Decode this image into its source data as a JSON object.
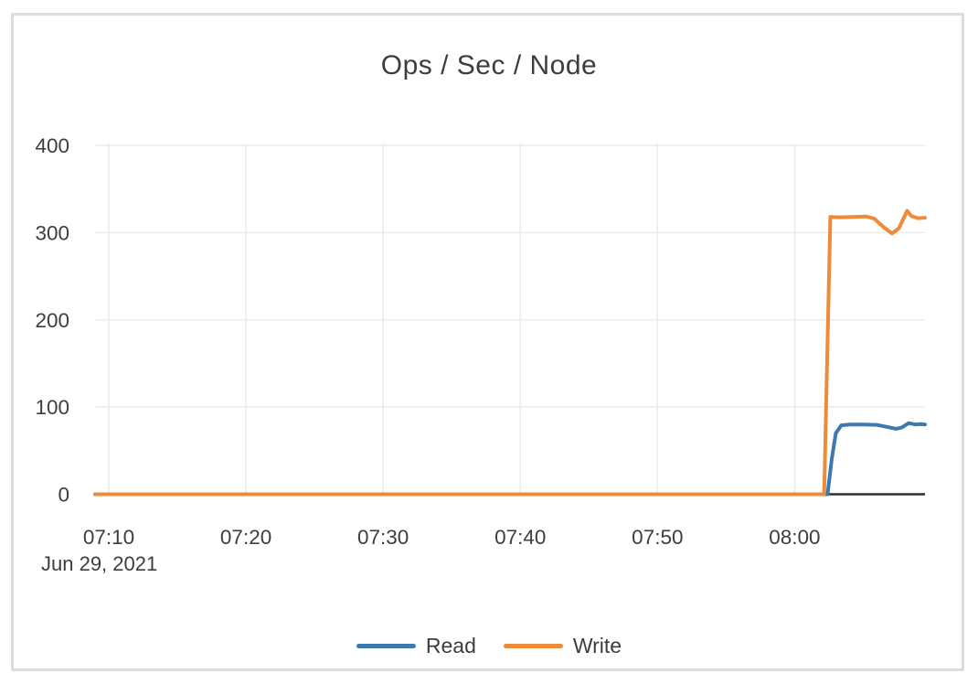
{
  "frame": {
    "background_color": "#ffffff",
    "border_color": "#dcdcdc"
  },
  "colors": {
    "text": "#3d3d3d",
    "gridline": "#ebebeb",
    "axis_line": "#2e2e2e",
    "read_series": "#3d79b0",
    "write_series": "#ee8a38"
  },
  "chart_data": {
    "type": "line",
    "title": "Ops / Sec / Node",
    "grid": true,
    "legend_position": "bottom",
    "x_axis": {
      "date_label": "Jun 29, 2021",
      "unit": "minutes after 07:00 on Jun 29, 2021",
      "tick_labels": [
        "07:10",
        "07:20",
        "07:30",
        "07:40",
        "07:50",
        "08:00"
      ],
      "tick_minutes": [
        10,
        20,
        30,
        40,
        50,
        60
      ],
      "range_minutes": [
        9,
        69.5
      ]
    },
    "y_axis": {
      "tick_labels": [
        "0",
        "100",
        "200",
        "300",
        "400"
      ],
      "tick_values": [
        0,
        100,
        200,
        300,
        400
      ],
      "range": [
        0,
        400
      ]
    },
    "series": [
      {
        "name": "Read",
        "color": "#3d79b0",
        "points": [
          [
            9,
            0
          ],
          [
            15,
            0
          ],
          [
            25,
            0
          ],
          [
            35,
            0
          ],
          [
            45,
            0
          ],
          [
            55,
            0
          ],
          [
            62,
            0
          ],
          [
            62.4,
            0
          ],
          [
            62.7,
            40
          ],
          [
            63.0,
            70
          ],
          [
            63.4,
            79
          ],
          [
            64,
            80
          ],
          [
            65,
            80
          ],
          [
            66,
            79.5
          ],
          [
            66.8,
            77
          ],
          [
            67.4,
            75
          ],
          [
            67.8,
            76.5
          ],
          [
            68.3,
            81.5
          ],
          [
            68.8,
            80
          ],
          [
            69.2,
            80.5
          ],
          [
            69.5,
            80
          ]
        ]
      },
      {
        "name": "Write",
        "color": "#ee8a38",
        "points": [
          [
            9,
            0
          ],
          [
            15,
            0
          ],
          [
            25,
            0
          ],
          [
            35,
            0
          ],
          [
            45,
            0
          ],
          [
            55,
            0
          ],
          [
            61.9,
            0
          ],
          [
            62.15,
            0
          ],
          [
            62.6,
            318
          ],
          [
            63.2,
            317.5
          ],
          [
            64.2,
            318
          ],
          [
            65.2,
            318.5
          ],
          [
            65.8,
            316
          ],
          [
            66.5,
            306
          ],
          [
            67.1,
            299
          ],
          [
            67.6,
            305
          ],
          [
            68.2,
            325
          ],
          [
            68.5,
            319
          ],
          [
            69.0,
            316.5
          ],
          [
            69.5,
            317
          ]
        ]
      }
    ]
  }
}
